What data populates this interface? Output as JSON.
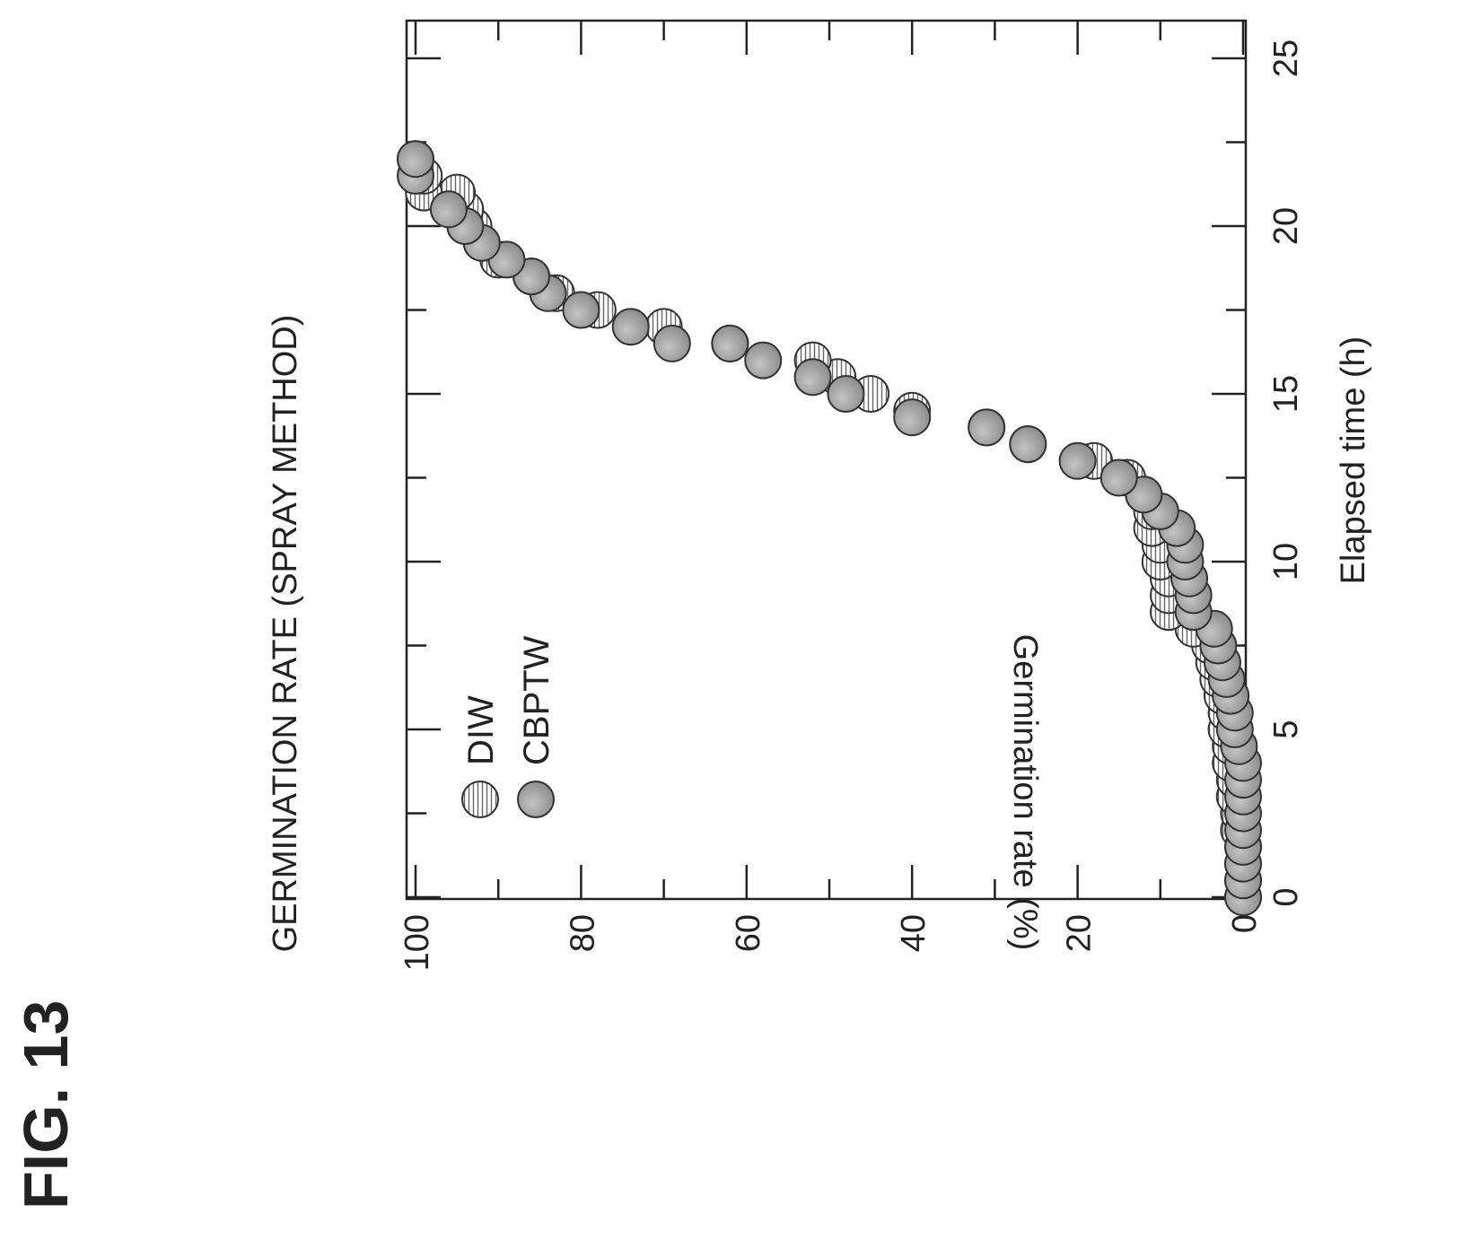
{
  "figure_label": "FIG. 13",
  "chart_data": {
    "type": "scatter",
    "title": "GERMINATION RATE (SPRAY METHOD)",
    "xlabel": "Elapsed time (h)",
    "ylabel": "Germination rate (%)",
    "xlim": [
      0,
      25
    ],
    "ylim": [
      0,
      100
    ],
    "xticks": [
      "0",
      "5",
      "10",
      "15",
      "20",
      "25"
    ],
    "yticks": [
      "0",
      "20",
      "40",
      "60",
      "80",
      "100"
    ],
    "grid": false,
    "legend_position": "top-left",
    "series": [
      {
        "name": "DIW",
        "marker": "hatched-circle",
        "points": [
          [
            0,
            0
          ],
          [
            0.5,
            0
          ],
          [
            1,
            0
          ],
          [
            1.5,
            0
          ],
          [
            2,
            0.5
          ],
          [
            2.5,
            0.5
          ],
          [
            3,
            1
          ],
          [
            3.5,
            1
          ],
          [
            4,
            1.5
          ],
          [
            4.5,
            1.5
          ],
          [
            5,
            2
          ],
          [
            5.5,
            2
          ],
          [
            6,
            2.5
          ],
          [
            6.5,
            3
          ],
          [
            7,
            3.5
          ],
          [
            7.5,
            4
          ],
          [
            8,
            6
          ],
          [
            8.5,
            9
          ],
          [
            9,
            9
          ],
          [
            9.5,
            9
          ],
          [
            10,
            10
          ],
          [
            10.5,
            10
          ],
          [
            11,
            11
          ],
          [
            11.5,
            11
          ],
          [
            12,
            12
          ],
          [
            12.5,
            14
          ],
          [
            13,
            18
          ],
          [
            13.5,
            26
          ],
          [
            14,
            31
          ],
          [
            14.5,
            40
          ],
          [
            15,
            45
          ],
          [
            15.5,
            49
          ],
          [
            16,
            52
          ],
          [
            16.5,
            62
          ],
          [
            17,
            70
          ],
          [
            17.5,
            78
          ],
          [
            18,
            83
          ],
          [
            18.5,
            86
          ],
          [
            19,
            90
          ],
          [
            19.5,
            92
          ],
          [
            20,
            93
          ],
          [
            20.5,
            94
          ],
          [
            21,
            95
          ],
          [
            21,
            99
          ],
          [
            21.5,
            99
          ],
          [
            22,
            100
          ]
        ]
      },
      {
        "name": "CBPTW",
        "marker": "filled-circle",
        "points": [
          [
            0,
            0
          ],
          [
            0.5,
            0
          ],
          [
            1,
            0
          ],
          [
            1.5,
            0
          ],
          [
            2,
            0
          ],
          [
            2.5,
            0
          ],
          [
            3,
            0
          ],
          [
            3.5,
            0
          ],
          [
            4,
            0
          ],
          [
            4.5,
            0.5
          ],
          [
            5,
            1
          ],
          [
            5.5,
            1
          ],
          [
            6,
            1.5
          ],
          [
            6.5,
            2
          ],
          [
            7,
            2.5
          ],
          [
            7.5,
            3
          ],
          [
            8,
            3.5
          ],
          [
            8.5,
            6
          ],
          [
            9,
            6
          ],
          [
            9.5,
            6.5
          ],
          [
            10,
            7
          ],
          [
            10.5,
            7
          ],
          [
            11,
            8
          ],
          [
            11.5,
            10
          ],
          [
            12,
            12
          ],
          [
            12.5,
            15
          ],
          [
            13,
            20
          ],
          [
            13.5,
            26
          ],
          [
            14,
            31
          ],
          [
            14.3,
            40
          ],
          [
            15,
            48
          ],
          [
            15.5,
            52
          ],
          [
            16,
            58
          ],
          [
            16.5,
            62
          ],
          [
            16.5,
            69
          ],
          [
            17,
            74
          ],
          [
            17.5,
            80
          ],
          [
            18,
            84
          ],
          [
            18.5,
            86
          ],
          [
            19,
            89
          ],
          [
            19.5,
            92
          ],
          [
            20,
            94
          ],
          [
            20.5,
            96
          ],
          [
            21.5,
            100
          ],
          [
            22,
            100
          ]
        ]
      }
    ]
  }
}
